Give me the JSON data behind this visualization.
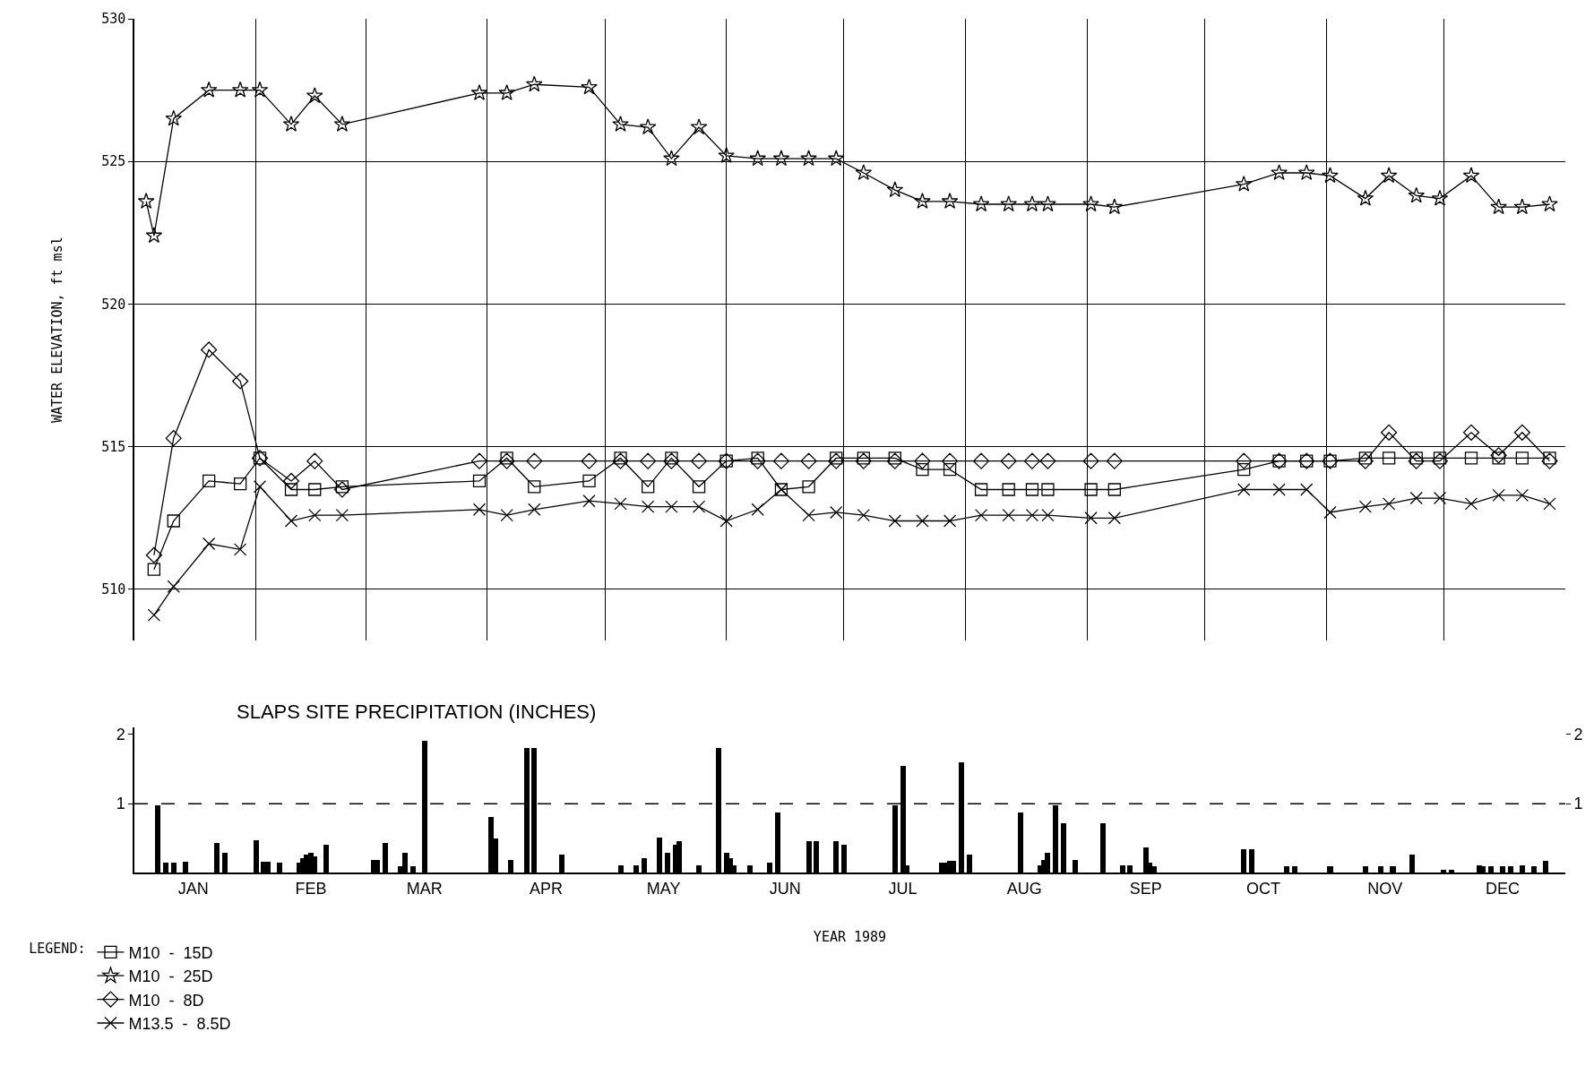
{
  "chart_data": [
    {
      "type": "line",
      "ylabel": "WATER ELEVATION, ft msl",
      "legend_title": "LEGEND:",
      "legend": "bottom left",
      "grid": true,
      "tick_labels": "y",
      "line_style": "solid",
      "xlim": [
        "1989-01-01",
        "1990-01-01"
      ],
      "xticks": [
        {
          "value": "1989-02-01",
          "label": null
        },
        {
          "value": "1989-03-01",
          "label": null
        },
        {
          "value": "1989-04-01",
          "label": null
        },
        {
          "value": "1989-05-01",
          "label": null
        },
        {
          "value": "1989-06-01",
          "label": null
        },
        {
          "value": "1989-07-01",
          "label": null
        },
        {
          "value": "1989-08-01",
          "label": null
        },
        {
          "value": "1989-09-01",
          "label": null
        },
        {
          "value": "1989-10-01",
          "label": null
        },
        {
          "value": "1989-11-01",
          "label": null
        },
        {
          "value": "1989-12-01",
          "label": null
        }
      ],
      "ylim": [
        508.2,
        530
      ],
      "yticks": [
        510,
        515,
        520,
        525,
        530
      ],
      "x": [
        "1989-01-04",
        "1989-01-06",
        "1989-01-11",
        "1989-01-20",
        "1989-01-28",
        "1989-02-02",
        "1989-02-10",
        "1989-02-16",
        "1989-02-23",
        "1989-03-30",
        "1989-04-06",
        "1989-04-13",
        "1989-04-27",
        "1989-05-05",
        "1989-05-12",
        "1989-05-18",
        "1989-05-25",
        "1989-06-01",
        "1989-06-09",
        "1989-06-15",
        "1989-06-22",
        "1989-06-29",
        "1989-07-06",
        "1989-07-14",
        "1989-07-21",
        "1989-07-28",
        "1989-08-05",
        "1989-08-12",
        "1989-08-18",
        "1989-08-22",
        "1989-09-02",
        "1989-09-08",
        "1989-10-11",
        "1989-10-20",
        "1989-10-27",
        "1989-11-02",
        "1989-11-11",
        "1989-11-17",
        "1989-11-24",
        "1989-11-30",
        "1989-12-08",
        "1989-12-15",
        "1989-12-21",
        "1989-12-28"
      ],
      "series": [
        {
          "name": "M10  -  15D",
          "color": "#000000",
          "marker": "square",
          "values": [
            null,
            510.7,
            512.4,
            513.8,
            513.7,
            514.6,
            513.5,
            513.5,
            513.6,
            513.8,
            514.6,
            513.6,
            513.8,
            514.6,
            513.6,
            514.6,
            513.6,
            514.5,
            514.6,
            513.5,
            513.6,
            514.6,
            514.6,
            514.6,
            514.2,
            514.2,
            513.5,
            513.5,
            513.5,
            513.5,
            513.5,
            513.5,
            514.2,
            514.5,
            514.5,
            514.5,
            514.6,
            514.6,
            514.6,
            514.6,
            514.6,
            514.6,
            514.6,
            514.6
          ]
        },
        {
          "name": "M10  -  25D",
          "color": "#000000",
          "marker": "star",
          "values": [
            523.6,
            522.4,
            526.5,
            527.5,
            527.5,
            527.5,
            526.3,
            527.3,
            526.3,
            527.4,
            527.4,
            527.7,
            527.6,
            526.3,
            526.2,
            525.1,
            526.2,
            525.2,
            525.1,
            525.1,
            525.1,
            525.1,
            524.6,
            524.0,
            523.6,
            523.6,
            523.5,
            523.5,
            523.5,
            523.5,
            523.5,
            523.4,
            524.2,
            524.6,
            524.6,
            524.5,
            523.7,
            524.5,
            523.8,
            523.7,
            524.5,
            523.4,
            523.4,
            523.5
          ]
        },
        {
          "name": "M10  -  8D",
          "color": "#000000",
          "marker": "diamond",
          "values": [
            null,
            511.2,
            515.3,
            518.4,
            517.3,
            514.6,
            513.8,
            514.5,
            513.5,
            514.5,
            514.5,
            514.5,
            514.5,
            514.5,
            514.5,
            514.5,
            514.5,
            514.5,
            514.5,
            514.5,
            514.5,
            514.5,
            514.5,
            514.5,
            514.5,
            514.5,
            514.5,
            514.5,
            514.5,
            514.5,
            514.5,
            514.5,
            514.5,
            514.5,
            514.5,
            514.5,
            514.5,
            515.5,
            514.5,
            514.5,
            515.5,
            514.7,
            515.5,
            514.5
          ]
        },
        {
          "name": "M13.5  -  8.5D",
          "color": "#000000",
          "marker": "cross",
          "values": [
            null,
            509.1,
            510.1,
            511.6,
            511.4,
            513.6,
            512.4,
            512.6,
            512.6,
            512.8,
            512.6,
            512.8,
            513.1,
            513.0,
            512.9,
            512.9,
            512.9,
            512.4,
            512.8,
            513.5,
            512.6,
            512.7,
            512.6,
            512.4,
            512.4,
            512.4,
            512.6,
            512.6,
            512.6,
            512.6,
            512.5,
            512.5,
            513.5,
            513.5,
            513.5,
            512.7,
            512.9,
            513.0,
            513.2,
            513.2,
            513.0,
            513.3,
            513.3,
            513.0
          ]
        }
      ]
    },
    {
      "type": "bar",
      "title": "SLAPS SITE PRECIPITATION (INCHES)",
      "xlabel": "YEAR 1989",
      "color": "#000000",
      "xlim": [
        "1989-01-01",
        "1990-01-01"
      ],
      "xticks": [
        {
          "value": "1989-01-16",
          "label": "JAN"
        },
        {
          "value": "1989-02-15",
          "label": "FEB"
        },
        {
          "value": "1989-03-16",
          "label": "MAR"
        },
        {
          "value": "1989-04-16",
          "label": "APR"
        },
        {
          "value": "1989-05-16",
          "label": "MAY"
        },
        {
          "value": "1989-06-16",
          "label": "JUN"
        },
        {
          "value": "1989-07-16",
          "label": "JUL"
        },
        {
          "value": "1989-08-16",
          "label": "AUG"
        },
        {
          "value": "1989-09-16",
          "label": "SEP"
        },
        {
          "value": "1989-10-16",
          "label": "OCT"
        },
        {
          "value": "1989-11-16",
          "label": "NOV"
        },
        {
          "value": "1989-12-16",
          "label": "DEC"
        }
      ],
      "ylim": [
        0,
        2.1
      ],
      "yticks": [
        1,
        2
      ],
      "y2lim": [
        0,
        2.1
      ],
      "y2ticks": [
        1,
        2
      ],
      "ref_lines": [
        {
          "axis": "y",
          "value": 1,
          "line_style": "dashed",
          "color": "#000000"
        }
      ],
      "x": [
        "1989-01-07",
        "1989-01-09",
        "1989-01-11",
        "1989-01-14",
        "1989-01-22",
        "1989-01-24",
        "1989-02-01",
        "1989-02-03",
        "1989-02-04",
        "1989-02-07",
        "1989-02-12",
        "1989-02-13",
        "1989-02-14",
        "1989-02-15",
        "1989-02-16",
        "1989-02-19",
        "1989-03-03",
        "1989-03-04",
        "1989-03-06",
        "1989-03-10",
        "1989-03-11",
        "1989-03-13",
        "1989-03-16",
        "1989-04-02",
        "1989-04-03",
        "1989-04-07",
        "1989-04-11",
        "1989-04-13",
        "1989-04-20",
        "1989-05-05",
        "1989-05-09",
        "1989-05-11",
        "1989-05-15",
        "1989-05-17",
        "1989-05-19",
        "1989-05-20",
        "1989-05-25",
        "1989-05-30",
        "1989-06-01",
        "1989-06-02",
        "1989-06-03",
        "1989-06-07",
        "1989-06-12",
        "1989-06-14",
        "1989-06-22",
        "1989-06-24",
        "1989-06-29",
        "1989-07-01",
        "1989-07-14",
        "1989-07-16",
        "1989-07-17",
        "1989-07-26",
        "1989-07-27",
        "1989-07-28",
        "1989-07-29",
        "1989-07-31",
        "1989-08-02",
        "1989-08-15",
        "1989-08-20",
        "1989-08-21",
        "1989-08-22",
        "1989-08-24",
        "1989-08-26",
        "1989-08-29",
        "1989-09-05",
        "1989-09-10",
        "1989-09-12",
        "1989-09-16",
        "1989-09-17",
        "1989-09-18",
        "1989-10-11",
        "1989-10-13",
        "1989-10-22",
        "1989-10-24",
        "1989-11-02",
        "1989-11-11",
        "1989-11-15",
        "1989-11-18",
        "1989-11-23",
        "1989-12-01",
        "1989-12-03",
        "1989-12-10",
        "1989-12-11",
        "1989-12-13",
        "1989-12-16",
        "1989-12-18",
        "1989-12-21",
        "1989-12-24",
        "1989-12-27"
      ],
      "values": [
        0.97,
        0.14,
        0.14,
        0.16,
        0.43,
        0.29,
        0.47,
        0.16,
        0.16,
        0.14,
        0.14,
        0.21,
        0.26,
        0.29,
        0.24,
        0.4,
        0.19,
        0.19,
        0.43,
        0.09,
        0.29,
        0.09,
        1.9,
        0.8,
        0.49,
        0.19,
        1.8,
        1.8,
        0.26,
        0.11,
        0.11,
        0.21,
        0.51,
        0.29,
        0.4,
        0.46,
        0.11,
        1.8,
        0.29,
        0.21,
        0.11,
        0.11,
        0.14,
        0.87,
        0.46,
        0.46,
        0.46,
        0.4,
        0.97,
        1.54,
        0.11,
        0.14,
        0.14,
        0.17,
        0.17,
        1.59,
        0.26,
        0.87,
        0.11,
        0.19,
        0.29,
        0.97,
        0.71,
        0.19,
        0.71,
        0.11,
        0.11,
        0.37,
        0.14,
        0.09,
        0.34,
        0.34,
        0.09,
        0.09,
        0.09,
        0.09,
        0.09,
        0.09,
        0.26,
        0.04,
        0.04,
        0.11,
        0.09,
        0.09,
        0.09,
        0.09,
        0.11,
        0.09,
        0.17
      ]
    }
  ]
}
